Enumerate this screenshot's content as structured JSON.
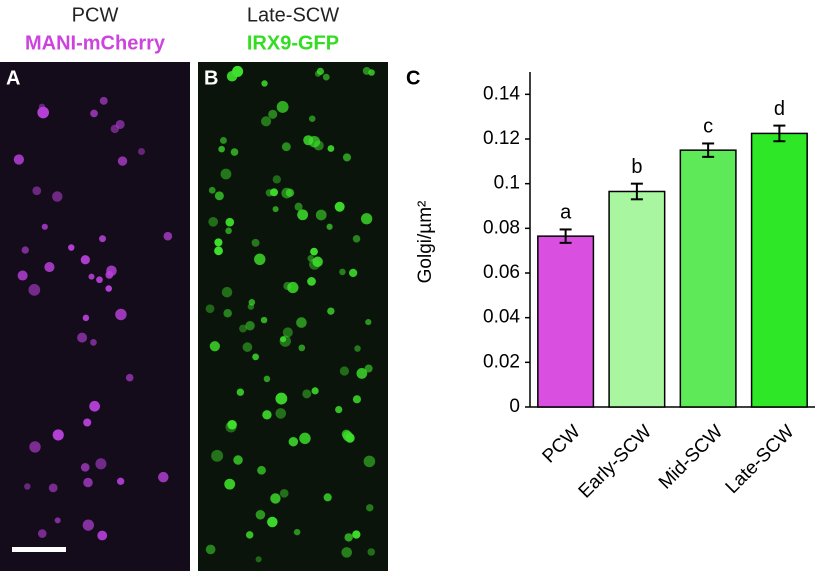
{
  "panels": {
    "a": {
      "letter": "A",
      "stage": "PCW",
      "marker": "MANI-mCherry"
    },
    "b": {
      "letter": "B",
      "stage": "Late-SCW",
      "marker": "IRX9-GFP"
    },
    "c": {
      "letter": "C"
    }
  },
  "chart_data": {
    "type": "bar",
    "y_label": "Golgi/µm²",
    "categories": [
      "PCW",
      "Early-SCW",
      "Mid-SCW",
      "Late-SCW"
    ],
    "values": [
      0.0765,
      0.0965,
      0.115,
      0.1225
    ],
    "errors": [
      0.003,
      0.0035,
      0.003,
      0.0035
    ],
    "annotations": [
      "a",
      "b",
      "c",
      "d"
    ],
    "colors": [
      "#d94fe0",
      "#a8f7a0",
      "#5eea58",
      "#2ee828"
    ],
    "ylim": [
      0,
      0.15
    ],
    "yticks": [
      0,
      0.02,
      0.04,
      0.06,
      0.08,
      0.1,
      0.12,
      0.14
    ]
  }
}
